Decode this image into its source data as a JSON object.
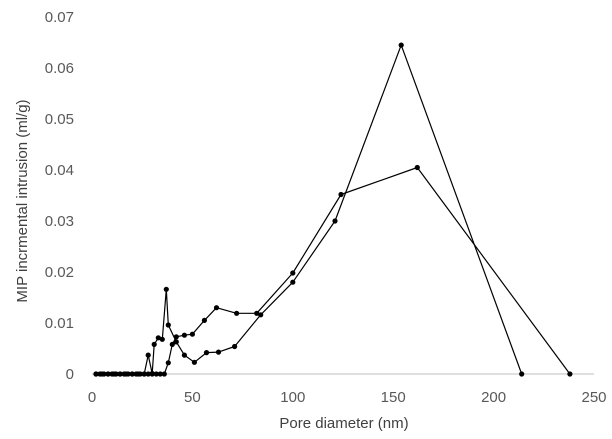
{
  "chart_data": {
    "type": "scatter",
    "xlabel": "Pore diameter  (nm)",
    "ylabel": "MIP incrmental intrusion (ml/g)",
    "xlim": [
      0,
      250
    ],
    "ylim": [
      0,
      0.07
    ],
    "x_ticks": [
      0,
      50,
      100,
      150,
      200,
      250
    ],
    "y_ticks": [
      0,
      0.01,
      0.02,
      0.03,
      0.04,
      0.05,
      0.06,
      0.07
    ],
    "x_tick_labels": [
      "0",
      "50",
      "100",
      "150",
      "200",
      "250"
    ],
    "y_tick_labels": [
      "0",
      "0.01",
      "0.02",
      "0.03",
      "0.04",
      "0.05",
      "0.06",
      "0.07"
    ],
    "grid": false,
    "legend": false,
    "line_color": "#000000",
    "series": [
      {
        "x": [
          2,
          4,
          6,
          8,
          10,
          12,
          14,
          16,
          18,
          20,
          22,
          24,
          26,
          28,
          30,
          32,
          34,
          36,
          38,
          40,
          42,
          46,
          50,
          56,
          62,
          72,
          82,
          100,
          124,
          162,
          238
        ],
        "y": [
          0,
          0,
          0,
          0,
          0,
          0,
          0,
          0,
          0,
          0,
          0,
          0,
          0,
          0,
          0,
          0,
          0,
          0,
          0.0022,
          0.0058,
          0.0073,
          0.0076,
          0.0078,
          0.0105,
          0.013,
          0.0119,
          0.0119,
          0.0198,
          0.0352,
          0.0405,
          0
        ]
      },
      {
        "x": [
          2,
          5,
          8,
          11,
          14,
          17,
          20,
          23,
          26,
          28,
          30,
          31,
          33,
          35,
          37,
          38,
          42,
          46,
          51,
          57,
          63,
          71,
          84,
          100,
          121,
          154,
          214
        ],
        "y": [
          0,
          0,
          0,
          0,
          0,
          0,
          0,
          0,
          0,
          0.0037,
          0.0001,
          0.0058,
          0.0071,
          0.0068,
          0.0166,
          0.0096,
          0.0063,
          0.0037,
          0.0023,
          0.0042,
          0.0043,
          0.0054,
          0.0116,
          0.018,
          0.03,
          0.0645,
          0
        ]
      }
    ]
  }
}
